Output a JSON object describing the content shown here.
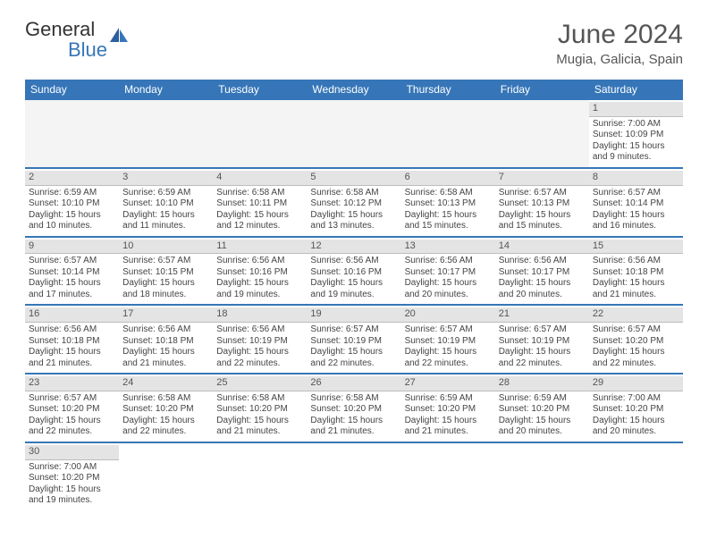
{
  "brand": {
    "text1": "General",
    "text2": "Blue"
  },
  "title": {
    "month": "June 2024",
    "location": "Mugia, Galicia, Spain"
  },
  "colors": {
    "accent": "#3676b8",
    "bg": "#ffffff",
    "headerRow": "#e4e4e4"
  },
  "weekdays": [
    "Sunday",
    "Monday",
    "Tuesday",
    "Wednesday",
    "Thursday",
    "Friday",
    "Saturday"
  ],
  "days": {
    "1": {
      "sunrise": "7:00 AM",
      "sunset": "10:09 PM",
      "dl": "15 hours and 9 minutes."
    },
    "2": {
      "sunrise": "6:59 AM",
      "sunset": "10:10 PM",
      "dl": "15 hours and 10 minutes."
    },
    "3": {
      "sunrise": "6:59 AM",
      "sunset": "10:10 PM",
      "dl": "15 hours and 11 minutes."
    },
    "4": {
      "sunrise": "6:58 AM",
      "sunset": "10:11 PM",
      "dl": "15 hours and 12 minutes."
    },
    "5": {
      "sunrise": "6:58 AM",
      "sunset": "10:12 PM",
      "dl": "15 hours and 13 minutes."
    },
    "6": {
      "sunrise": "6:58 AM",
      "sunset": "10:13 PM",
      "dl": "15 hours and 15 minutes."
    },
    "7": {
      "sunrise": "6:57 AM",
      "sunset": "10:13 PM",
      "dl": "15 hours and 15 minutes."
    },
    "8": {
      "sunrise": "6:57 AM",
      "sunset": "10:14 PM",
      "dl": "15 hours and 16 minutes."
    },
    "9": {
      "sunrise": "6:57 AM",
      "sunset": "10:14 PM",
      "dl": "15 hours and 17 minutes."
    },
    "10": {
      "sunrise": "6:57 AM",
      "sunset": "10:15 PM",
      "dl": "15 hours and 18 minutes."
    },
    "11": {
      "sunrise": "6:56 AM",
      "sunset": "10:16 PM",
      "dl": "15 hours and 19 minutes."
    },
    "12": {
      "sunrise": "6:56 AM",
      "sunset": "10:16 PM",
      "dl": "15 hours and 19 minutes."
    },
    "13": {
      "sunrise": "6:56 AM",
      "sunset": "10:17 PM",
      "dl": "15 hours and 20 minutes."
    },
    "14": {
      "sunrise": "6:56 AM",
      "sunset": "10:17 PM",
      "dl": "15 hours and 20 minutes."
    },
    "15": {
      "sunrise": "6:56 AM",
      "sunset": "10:18 PM",
      "dl": "15 hours and 21 minutes."
    },
    "16": {
      "sunrise": "6:56 AM",
      "sunset": "10:18 PM",
      "dl": "15 hours and 21 minutes."
    },
    "17": {
      "sunrise": "6:56 AM",
      "sunset": "10:18 PM",
      "dl": "15 hours and 21 minutes."
    },
    "18": {
      "sunrise": "6:56 AM",
      "sunset": "10:19 PM",
      "dl": "15 hours and 22 minutes."
    },
    "19": {
      "sunrise": "6:57 AM",
      "sunset": "10:19 PM",
      "dl": "15 hours and 22 minutes."
    },
    "20": {
      "sunrise": "6:57 AM",
      "sunset": "10:19 PM",
      "dl": "15 hours and 22 minutes."
    },
    "21": {
      "sunrise": "6:57 AM",
      "sunset": "10:19 PM",
      "dl": "15 hours and 22 minutes."
    },
    "22": {
      "sunrise": "6:57 AM",
      "sunset": "10:20 PM",
      "dl": "15 hours and 22 minutes."
    },
    "23": {
      "sunrise": "6:57 AM",
      "sunset": "10:20 PM",
      "dl": "15 hours and 22 minutes."
    },
    "24": {
      "sunrise": "6:58 AM",
      "sunset": "10:20 PM",
      "dl": "15 hours and 22 minutes."
    },
    "25": {
      "sunrise": "6:58 AM",
      "sunset": "10:20 PM",
      "dl": "15 hours and 21 minutes."
    },
    "26": {
      "sunrise": "6:58 AM",
      "sunset": "10:20 PM",
      "dl": "15 hours and 21 minutes."
    },
    "27": {
      "sunrise": "6:59 AM",
      "sunset": "10:20 PM",
      "dl": "15 hours and 21 minutes."
    },
    "28": {
      "sunrise": "6:59 AM",
      "sunset": "10:20 PM",
      "dl": "15 hours and 20 minutes."
    },
    "29": {
      "sunrise": "7:00 AM",
      "sunset": "10:20 PM",
      "dl": "15 hours and 20 minutes."
    },
    "30": {
      "sunrise": "7:00 AM",
      "sunset": "10:20 PM",
      "dl": "15 hours and 19 minutes."
    }
  },
  "labels": {
    "sunrise": "Sunrise:",
    "sunset": "Sunset:",
    "daylight": "Daylight:"
  },
  "layout": {
    "startOffset": 6,
    "total": 30
  }
}
